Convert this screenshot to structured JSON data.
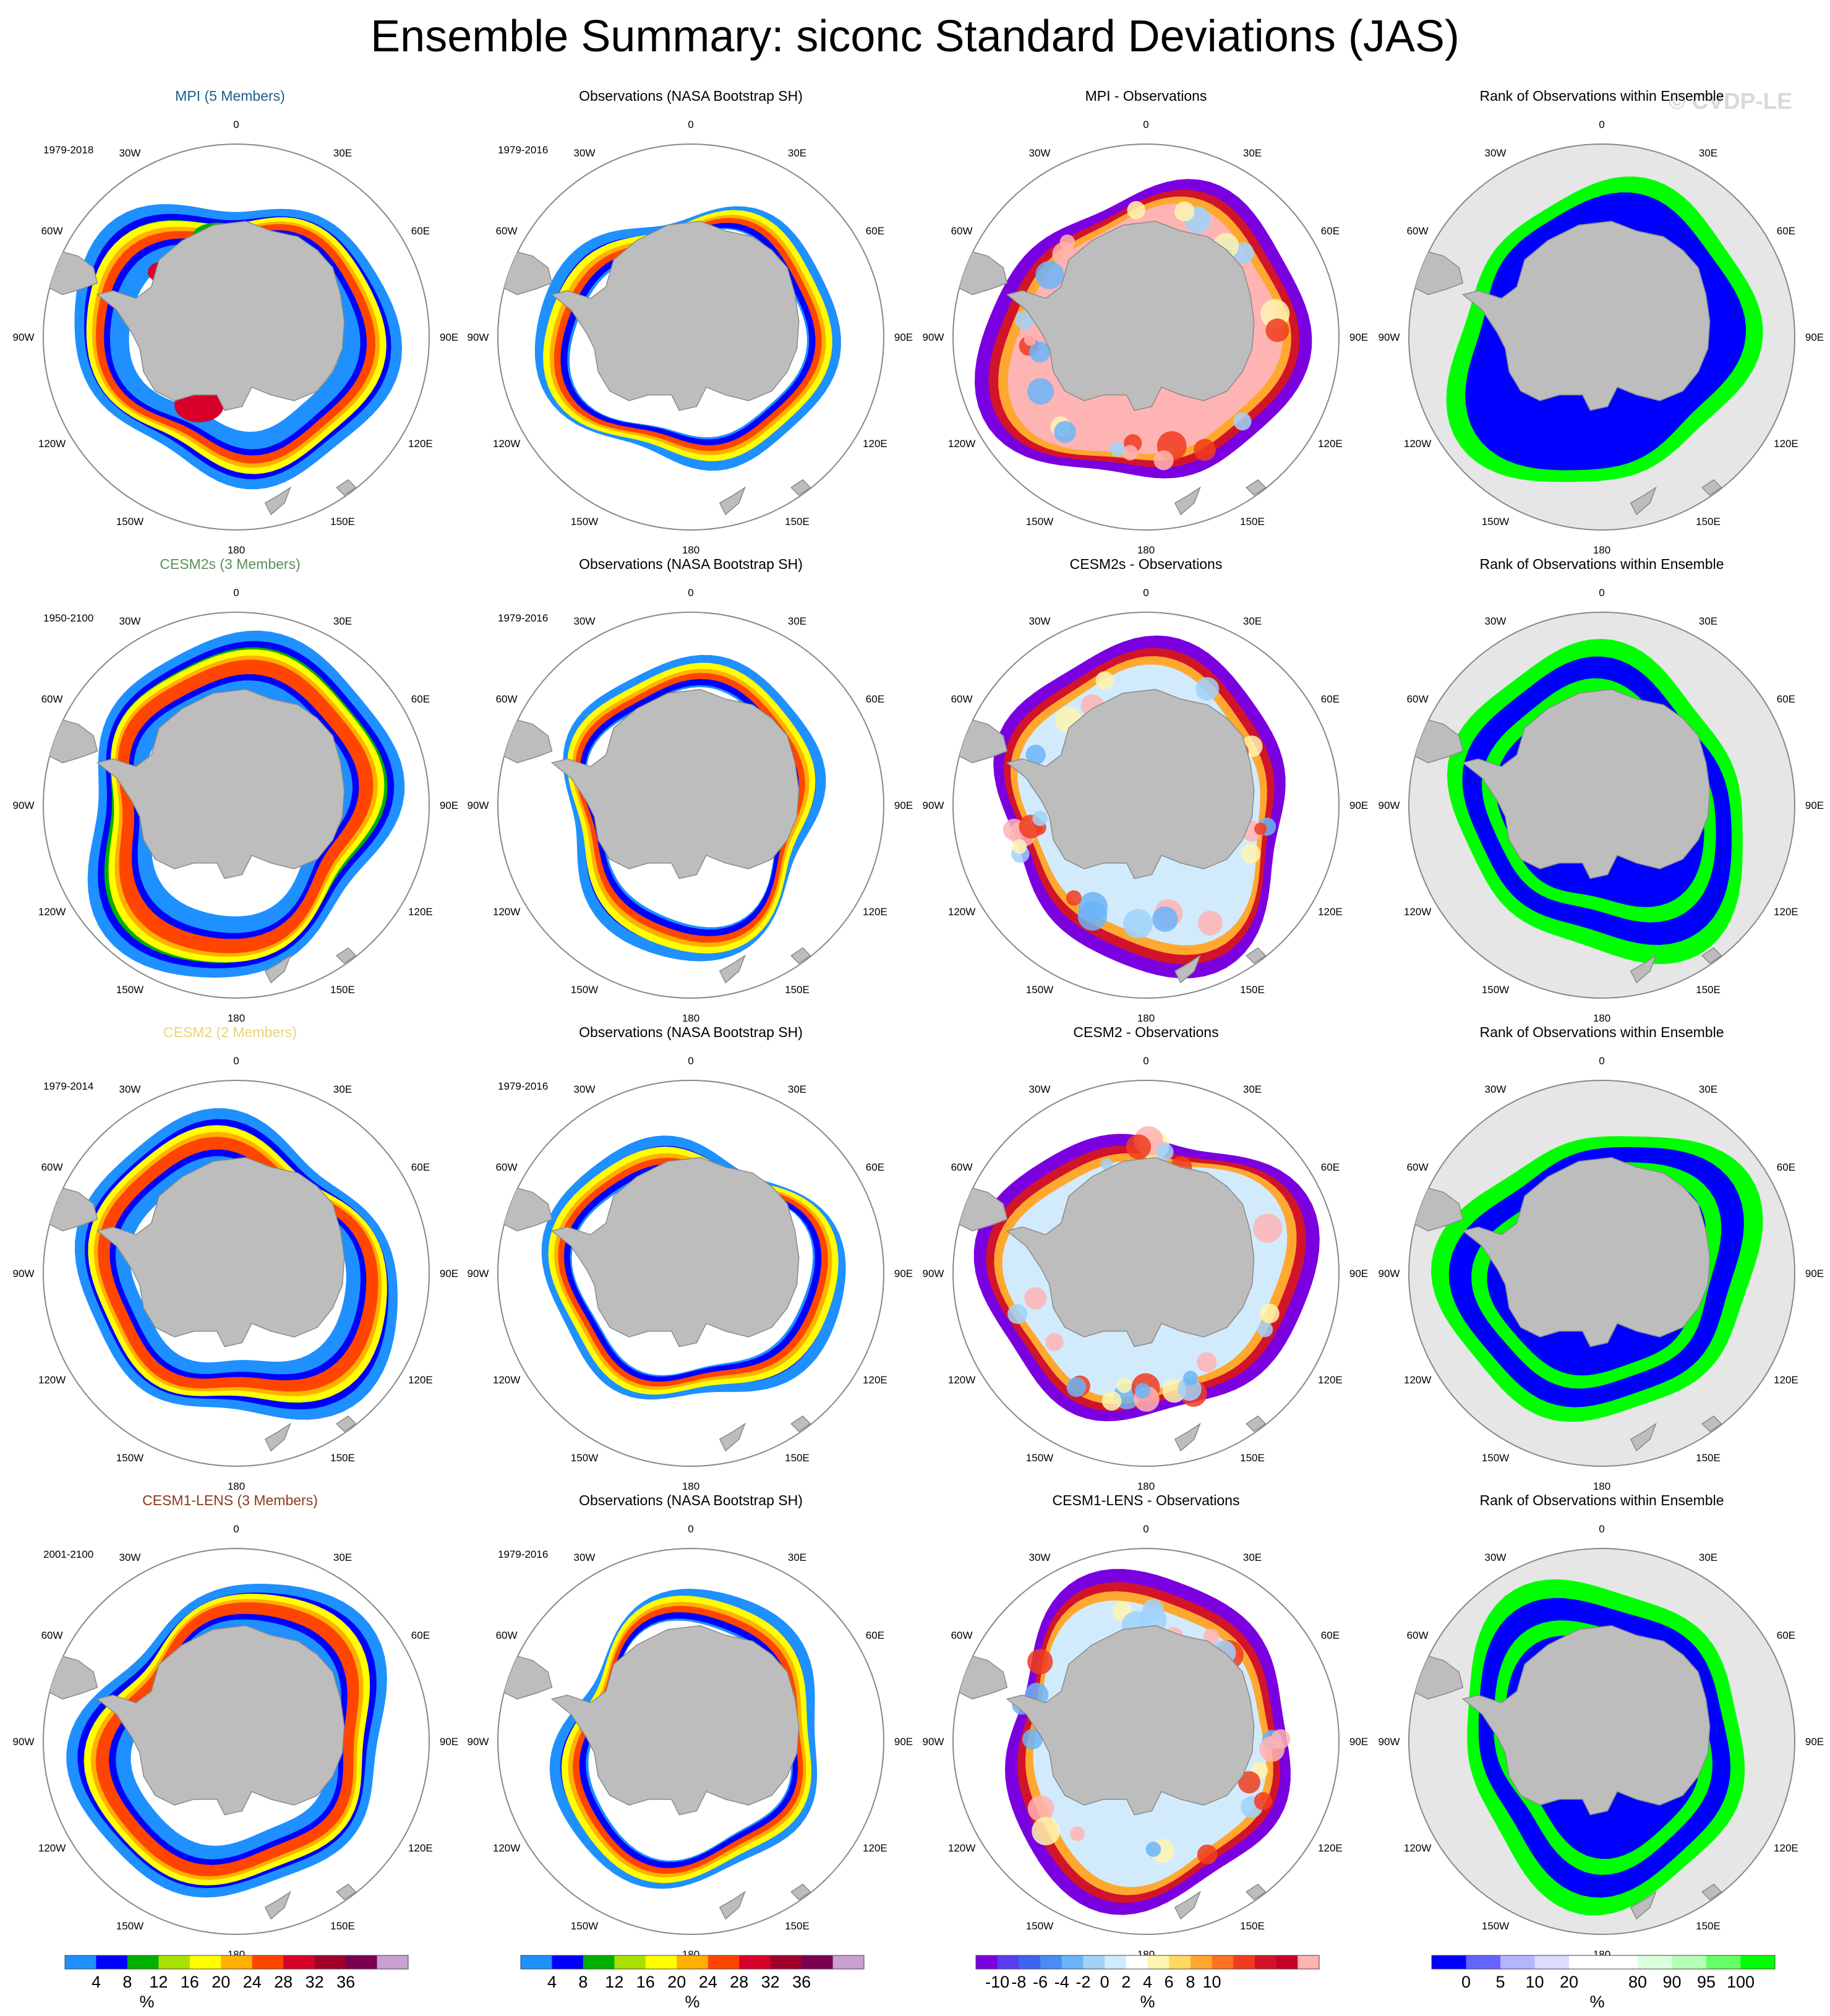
{
  "title": "Ensemble Summary: siconc Standard Deviations (JAS)",
  "watermark": "© CVDP-LE",
  "longitude_labels": [
    "0",
    "30E",
    "60E",
    "90E",
    "120E",
    "150E",
    "180",
    "150W",
    "120W",
    "90W",
    "60W",
    "30W"
  ],
  "colors": {
    "background": "#ffffff",
    "land": "#bdbdbd",
    "rank_background": "#e6e6e6",
    "circle_outline": "#888888"
  },
  "chart_data": [
    {
      "type": "heatmap",
      "projection": "south-polar-stereographic",
      "row": 0,
      "col": 0,
      "panel_kind": "model",
      "title": "MPI (5 Members)",
      "title_color": "#1b5f8f",
      "period": "1979-2018",
      "ring": {
        "inner": 0.5,
        "outer": 0.78,
        "mid": 0.62,
        "peak": 0.68
      }
    },
    {
      "type": "heatmap",
      "projection": "south-polar-stereographic",
      "row": 0,
      "col": 1,
      "panel_kind": "obs",
      "title": "Observations (NASA Bootstrap SH)",
      "title_color": "#000000",
      "period": "1979-2016",
      "ring": {
        "inner": 0.56,
        "outer": 0.72,
        "mid": 0.6,
        "peak": 0.65
      }
    },
    {
      "type": "heatmap",
      "projection": "south-polar-stereographic",
      "row": 0,
      "col": 2,
      "panel_kind": "diff",
      "title": "MPI - Observations",
      "title_color": "#000000",
      "period": ""
    },
    {
      "type": "heatmap",
      "projection": "south-polar-stereographic",
      "row": 0,
      "col": 3,
      "panel_kind": "rank",
      "title": "Rank of Observations within Ensemble",
      "title_color": "#000000",
      "period": ""
    },
    {
      "type": "heatmap",
      "projection": "south-polar-stereographic",
      "row": 1,
      "col": 0,
      "panel_kind": "model",
      "title": "CESM2s (3 Members)",
      "title_color": "#5a8f5a",
      "period": "1950-2100",
      "ring": {
        "inner": 0.52,
        "outer": 0.84,
        "mid": 0.63,
        "peak": 0.72
      }
    },
    {
      "type": "heatmap",
      "projection": "south-polar-stereographic",
      "row": 1,
      "col": 1,
      "panel_kind": "obs",
      "title": "Observations (NASA Bootstrap SH)",
      "title_color": "#000000",
      "period": "1979-2016",
      "ring": {
        "inner": 0.56,
        "outer": 0.72,
        "mid": 0.6,
        "peak": 0.65
      }
    },
    {
      "type": "heatmap",
      "projection": "south-polar-stereographic",
      "row": 1,
      "col": 2,
      "panel_kind": "diff",
      "title": "CESM2s - Observations",
      "title_color": "#000000",
      "period": ""
    },
    {
      "type": "heatmap",
      "projection": "south-polar-stereographic",
      "row": 1,
      "col": 3,
      "panel_kind": "rank",
      "title": "Rank of Observations within Ensemble",
      "title_color": "#000000",
      "period": ""
    },
    {
      "type": "heatmap",
      "projection": "south-polar-stereographic",
      "row": 2,
      "col": 0,
      "panel_kind": "model",
      "title": "CESM2 (2 Members)",
      "title_color": "#e8d37a",
      "period": "1979-2014",
      "ring": {
        "inner": 0.52,
        "outer": 0.8,
        "mid": 0.62,
        "peak": 0.7
      }
    },
    {
      "type": "heatmap",
      "projection": "south-polar-stereographic",
      "row": 2,
      "col": 1,
      "panel_kind": "obs",
      "title": "Observations (NASA Bootstrap SH)",
      "title_color": "#000000",
      "period": "1979-2016",
      "ring": {
        "inner": 0.56,
        "outer": 0.72,
        "mid": 0.6,
        "peak": 0.65
      }
    },
    {
      "type": "heatmap",
      "projection": "south-polar-stereographic",
      "row": 2,
      "col": 2,
      "panel_kind": "diff",
      "title": "CESM2 - Observations",
      "title_color": "#000000",
      "period": ""
    },
    {
      "type": "heatmap",
      "projection": "south-polar-stereographic",
      "row": 2,
      "col": 3,
      "panel_kind": "rank",
      "title": "Rank of Observations within Ensemble",
      "title_color": "#000000",
      "period": ""
    },
    {
      "type": "heatmap",
      "projection": "south-polar-stereographic",
      "row": 3,
      "col": 0,
      "panel_kind": "model",
      "title": "CESM1-LENS (3 Members)",
      "title_color": "#8b3a1a",
      "period": "2001-2100",
      "ring": {
        "inner": 0.52,
        "outer": 0.8,
        "mid": 0.62,
        "peak": 0.7
      }
    },
    {
      "type": "heatmap",
      "projection": "south-polar-stereographic",
      "row": 3,
      "col": 1,
      "panel_kind": "obs",
      "title": "Observations (NASA Bootstrap SH)",
      "title_color": "#000000",
      "period": "1979-2016",
      "ring": {
        "inner": 0.56,
        "outer": 0.72,
        "mid": 0.6,
        "peak": 0.65
      }
    },
    {
      "type": "heatmap",
      "projection": "south-polar-stereographic",
      "row": 3,
      "col": 2,
      "panel_kind": "diff",
      "title": "CESM1-LENS - Observations",
      "title_color": "#000000",
      "period": ""
    },
    {
      "type": "heatmap",
      "projection": "south-polar-stereographic",
      "row": 3,
      "col": 3,
      "panel_kind": "rank",
      "title": "Rank of Observations within Ensemble",
      "title_color": "#000000",
      "period": ""
    }
  ],
  "colorbars": [
    {
      "name": "std-colorbar-models",
      "col": 0,
      "unit": "%",
      "colors": [
        "#1e90ff",
        "#0000ff",
        "#00b000",
        "#a8e000",
        "#ffff00",
        "#ffb000",
        "#ff4500",
        "#d7002a",
        "#a0002a",
        "#7a0050",
        "#c8a0d2"
      ],
      "labels": [
        "4",
        "8",
        "12",
        "16",
        "20",
        "24",
        "28",
        "32",
        "36"
      ]
    },
    {
      "name": "std-colorbar-obs",
      "col": 1,
      "unit": "%",
      "colors": [
        "#1e90ff",
        "#0000ff",
        "#00b000",
        "#a8e000",
        "#ffff00",
        "#ffb000",
        "#ff4500",
        "#d7002a",
        "#a0002a",
        "#7a0050",
        "#c8a0d2"
      ],
      "labels": [
        "4",
        "8",
        "12",
        "16",
        "20",
        "24",
        "28",
        "32",
        "36"
      ]
    },
    {
      "name": "diff-colorbar",
      "col": 2,
      "unit": "%",
      "colors": [
        "#7a00e0",
        "#5a3cf0",
        "#3c64f0",
        "#4a8cf5",
        "#6cb4f8",
        "#a0d2fa",
        "#d2ebfc",
        "#ffffff",
        "#fff5b0",
        "#ffd860",
        "#ffa830",
        "#ff7020",
        "#f03c1e",
        "#d2142a",
        "#c80028",
        "#ffb4b4"
      ],
      "labels": [
        "-10",
        "-8",
        "-6",
        "-4",
        "-2",
        "0",
        "2",
        "4",
        "6",
        "8",
        "10"
      ]
    },
    {
      "name": "rank-colorbar",
      "col": 3,
      "unit": "%",
      "colors": [
        "#0000ff",
        "#6464ff",
        "#b4b4ff",
        "#dcdcff",
        "#ffffff",
        "#ffffff",
        "#dcffdc",
        "#b4ffb4",
        "#64ff64",
        "#00ff00"
      ],
      "labels": [
        "0",
        "5",
        "10",
        "20",
        "80",
        "90",
        "95",
        "100"
      ]
    }
  ]
}
